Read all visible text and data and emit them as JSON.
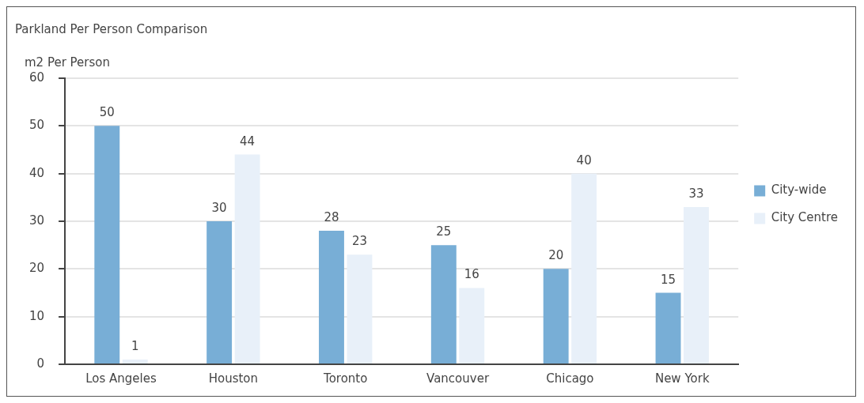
{
  "chart_data": {
    "type": "bar",
    "title": "Parkland Per Person Comparison",
    "ylabel": "m2 Per Person",
    "categories": [
      "Los Angeles",
      "Houston",
      "Toronto",
      "Vancouver",
      "Chicago",
      "New York"
    ],
    "series": [
      {
        "name": "City-wide",
        "color": "#78aed6",
        "values": [
          50,
          30,
          28,
          25,
          20,
          15
        ]
      },
      {
        "name": "City Centre",
        "color": "#e8f0f9",
        "values": [
          1,
          44,
          23,
          16,
          40,
          33
        ]
      }
    ],
    "ylim": [
      0,
      60
    ],
    "yticks": [
      0,
      10,
      20,
      30,
      40,
      50,
      60
    ],
    "grid": "y",
    "legend": "right",
    "data_labels": true
  }
}
